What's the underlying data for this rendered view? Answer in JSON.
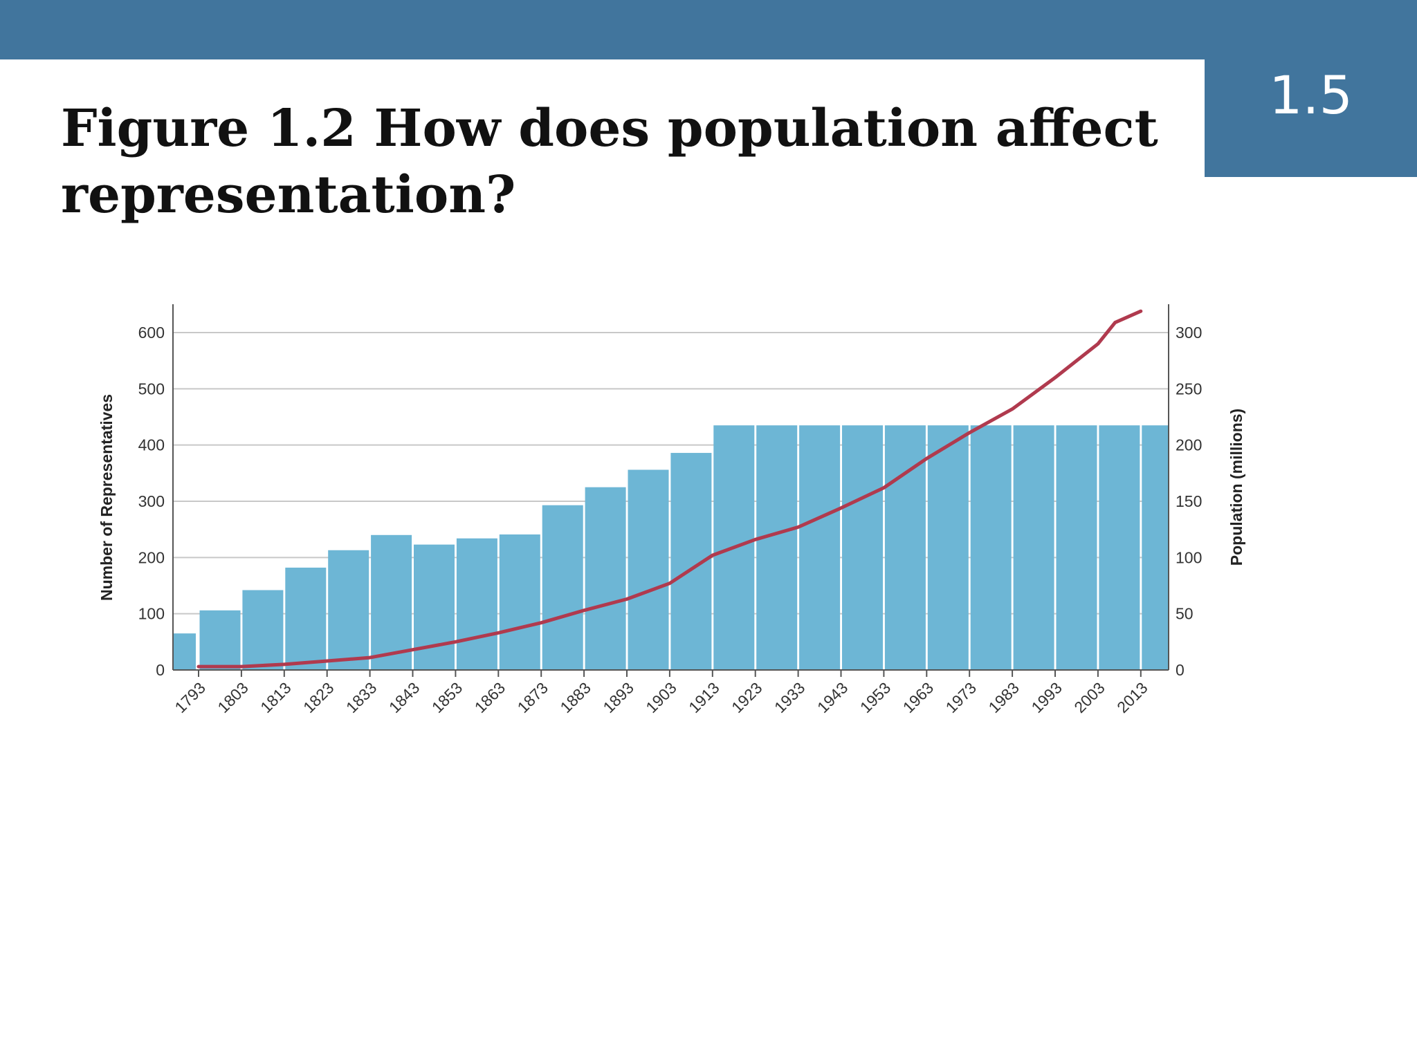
{
  "slide": {
    "section_number": "1.5",
    "title": "Figure 1.2 How does population affect representation?"
  },
  "colors": {
    "header": "#41759d",
    "bars": "#6db6d5",
    "line": "#b03a4e",
    "grid": "#c8c8c8",
    "axis": "#555555"
  },
  "chart_data": {
    "type": "bar",
    "combo": "bar-line",
    "title": "",
    "grid": true,
    "categories": [
      "1793",
      "1803",
      "1813",
      "1823",
      "1833",
      "1843",
      "1853",
      "1863",
      "1873",
      "1883",
      "1893",
      "1903",
      "1913",
      "1923",
      "1933",
      "1943",
      "1953",
      "1963",
      "1973",
      "1983",
      "1993",
      "2003",
      "2013"
    ],
    "x_extra_leading_bar": {
      "label": "",
      "value": 65
    },
    "series": [
      {
        "kind": "bar",
        "axis": "left",
        "values": [
          106,
          142,
          182,
          213,
          240,
          223,
          234,
          241,
          293,
          325,
          356,
          386,
          435,
          435,
          435,
          435,
          435,
          435,
          435,
          435,
          435,
          435,
          435
        ]
      },
      {
        "kind": "line",
        "axis": "right",
        "x": [
          1793,
          1803,
          1813,
          1823,
          1833,
          1843,
          1853,
          1863,
          1873,
          1883,
          1893,
          1903,
          1913,
          1923,
          1933,
          1943,
          1953,
          1963,
          1973,
          1983,
          1993,
          2003,
          2007,
          2013
        ],
        "values": [
          3,
          3,
          5,
          8,
          11,
          18,
          25,
          33,
          42,
          53,
          63,
          77,
          102,
          116,
          127,
          144,
          162,
          188,
          211,
          232,
          260,
          290,
          309,
          319
        ]
      }
    ],
    "y_left": {
      "label": "Number of Representatives",
      "min": 0,
      "max": 600,
      "ticks": [
        "0",
        "100",
        "200",
        "300",
        "400",
        "500",
        "600"
      ]
    },
    "y_right": {
      "label": "Population (millions)",
      "min": 0,
      "max": 300,
      "ticks": [
        "0",
        "50",
        "100",
        "150",
        "200",
        "250",
        "300"
      ]
    }
  }
}
